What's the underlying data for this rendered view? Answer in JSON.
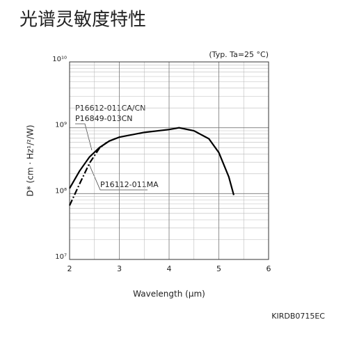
{
  "chart_data": {
    "type": "line",
    "title": "光谱灵敏度特性",
    "annotation": "(Typ. Ta=25 °C)",
    "code": "KIRDB0715EC",
    "x_label": "Wavelength (μm)",
    "y_label": "D* (cm · Hz¹/²/W)",
    "xlim": [
      2,
      6
    ],
    "xticks": [
      2,
      3,
      4,
      5,
      6
    ],
    "ylim": [
      10000000,
      10000000000
    ],
    "ylog": true,
    "yticks": [
      {
        "value": 10000000,
        "label": "10⁷"
      },
      {
        "value": 100000000,
        "label": "10⁸"
      },
      {
        "value": 1000000000,
        "label": "10⁹"
      },
      {
        "value": 10000000000,
        "label": "10¹⁰"
      }
    ],
    "grid": true,
    "series": [
      {
        "name": [
          "P16612-011CA/CN",
          "P16849-013CN"
        ],
        "color": "#000000",
        "style": "solid",
        "x": [
          2.0,
          2.2,
          2.4,
          2.6,
          2.8,
          3.0,
          3.5,
          4.0,
          4.2,
          4.5,
          4.8,
          5.0,
          5.2,
          5.3
        ],
        "values": [
          120000000,
          220000000,
          360000000,
          500000000,
          630000000,
          720000000,
          850000000,
          940000000,
          1000000000,
          900000000,
          680000000,
          420000000,
          180000000,
          95000000
        ]
      },
      {
        "name": [
          "P16112-011MA"
        ],
        "color": "#000000",
        "style": "dashdot",
        "x": [
          2.0,
          2.2,
          2.4,
          2.6,
          2.75
        ],
        "values": [
          66000000,
          140000000,
          290000000,
          490000000,
          600000000
        ]
      }
    ]
  }
}
